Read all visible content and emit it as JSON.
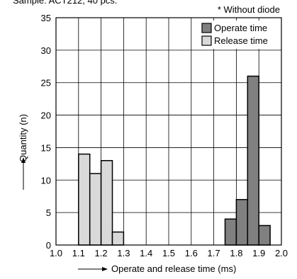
{
  "chart_data": {
    "type": "histogram",
    "subtitle": "Sample: ACT212, 40 pcs.",
    "annotation": "* Without diode",
    "x_label": "Operate and release time (ms)",
    "y_label": "Quantity (n)",
    "series": [
      {
        "name": "Operate time",
        "color": "#808080",
        "bins": [
          1.75,
          1.8,
          1.85,
          1.9,
          1.95
        ],
        "values": [
          4,
          7,
          26,
          3
        ]
      },
      {
        "name": "Release time",
        "color": "#d9d9d9",
        "bins": [
          1.1,
          1.15,
          1.2,
          1.25,
          1.3
        ],
        "values": [
          14,
          11,
          13,
          2
        ]
      }
    ],
    "xlim": [
      1.0,
      2.0
    ],
    "xticks": [
      {
        "value": 1.0,
        "label": "1.0"
      },
      1.1,
      1.2,
      1.3,
      1.4,
      1.5,
      1.6,
      1.7,
      1.8,
      1.9,
      {
        "value": 2.0,
        "label": "2.0"
      }
    ],
    "ylim": [
      0,
      35
    ],
    "yticks": [
      0,
      5,
      10,
      15,
      20,
      25,
      30,
      35
    ],
    "grid": true,
    "legend": "top-right"
  }
}
